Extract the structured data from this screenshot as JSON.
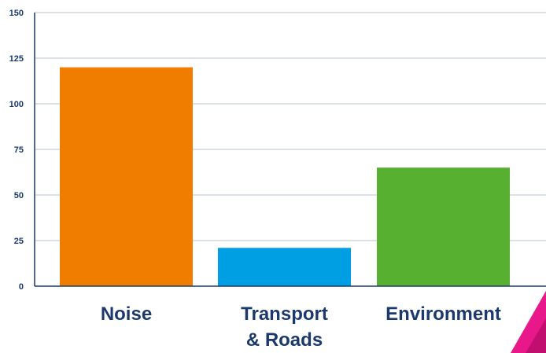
{
  "chart_data": {
    "type": "bar",
    "title": "",
    "xlabel": "",
    "ylabel": "",
    "categories": [
      "Noise",
      "Transport & Roads",
      "Environment"
    ],
    "category_lines": [
      [
        "Noise"
      ],
      [
        "Transport",
        "& Roads"
      ],
      [
        "Environment"
      ]
    ],
    "values": [
      120,
      21,
      65
    ],
    "colors": [
      "#f07d00",
      "#009fe3",
      "#57b030"
    ],
    "ylim": [
      0,
      150
    ],
    "yticks": [
      "0",
      "25",
      "50",
      "75",
      "100",
      "125",
      "150"
    ],
    "grid": true,
    "legend": "none"
  }
}
